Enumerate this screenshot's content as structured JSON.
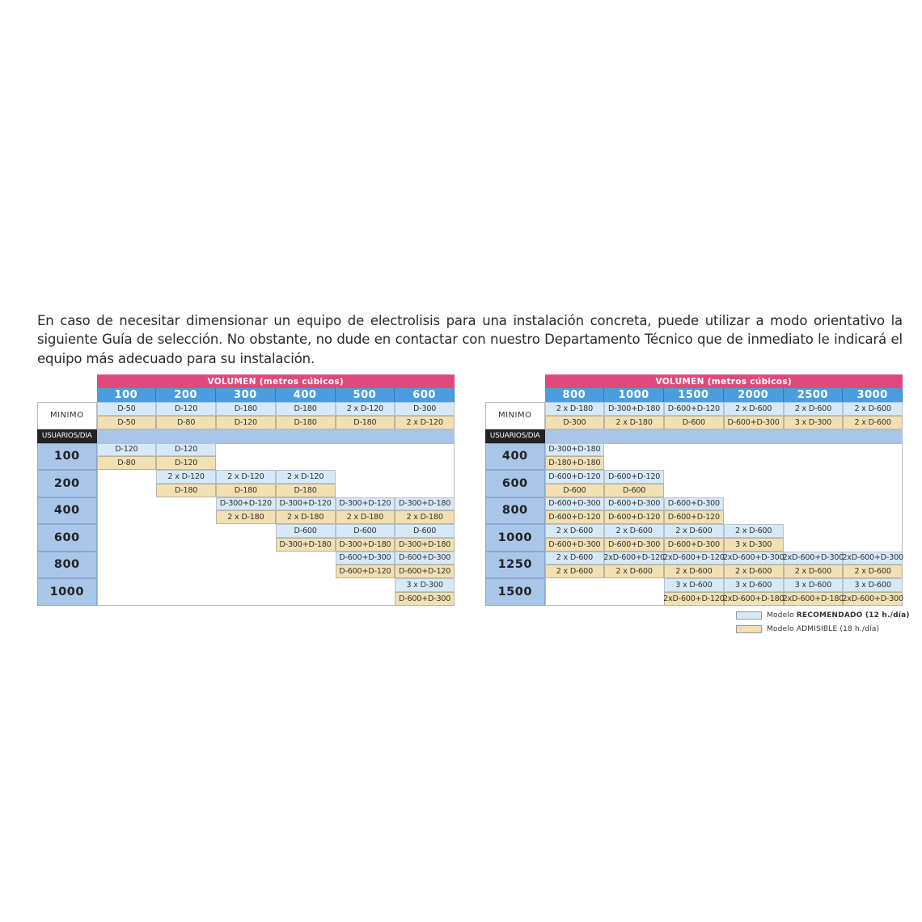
{
  "intro_text": "En caso de necesitar dimensionar un equipo de electrolisis para una instalación concreta, puede utilizar a modo orientativo la siguiente Guía de selección. No obstante, no dude en contactar con nuestro Departamento Técnico que de inmediato le indicará el equipo más adecuado para su instalación.",
  "colors": {
    "volumen_header": "#e0497e",
    "column_header": "#4b9de0",
    "recomendado": "#d6e9f8",
    "admisible": "#f2e0b3",
    "row_label": "#a9c5e8"
  },
  "tables": [
    {
      "volume_title": "VOLUMEN (metros cúbicos)",
      "minimo_label": "MINIMO",
      "usuarios_label": "USUARIOS/DIA",
      "columns": [
        "100",
        "200",
        "300",
        "400",
        "500",
        "600"
      ],
      "minimo": {
        "recomendado": [
          "D-50",
          "D-120",
          "D-180",
          "D-180",
          "2 x D-120",
          "D-300"
        ],
        "admisible": [
          "D-50",
          "D-80",
          "D-120",
          "D-180",
          "D-180",
          "2 x D-120"
        ]
      },
      "rows": [
        {
          "label": "100",
          "recomendado": [
            "D-120",
            "D-120",
            null,
            null,
            null,
            null
          ],
          "admisible": [
            "D-80",
            "D-120",
            null,
            null,
            null,
            null
          ]
        },
        {
          "label": "200",
          "recomendado": [
            null,
            "2 x D-120",
            "2 x D-120",
            "2 x D-120",
            null,
            null
          ],
          "admisible": [
            null,
            "D-180",
            "D-180",
            "D-180",
            null,
            null
          ]
        },
        {
          "label": "400",
          "recomendado": [
            null,
            null,
            "D-300+D-120",
            "D-300+D-120",
            "D-300+D-120",
            "D-300+D-180"
          ],
          "admisible": [
            null,
            null,
            "2 x D-180",
            "2 x D-180",
            "2 x D-180",
            "2 x D-180"
          ]
        },
        {
          "label": "600",
          "recomendado": [
            null,
            null,
            null,
            "D-600",
            "D-600",
            "D-600"
          ],
          "admisible": [
            null,
            null,
            null,
            "D-300+D-180",
            "D-300+D-180",
            "D-300+D-180"
          ]
        },
        {
          "label": "800",
          "recomendado": [
            null,
            null,
            null,
            null,
            "D-600+D-300",
            "D-600+D-300"
          ],
          "admisible": [
            null,
            null,
            null,
            null,
            "D-600+D-120",
            "D-600+D-120"
          ]
        },
        {
          "label": "1000",
          "recomendado": [
            null,
            null,
            null,
            null,
            null,
            "3 x D-300"
          ],
          "admisible": [
            null,
            null,
            null,
            null,
            null,
            "D-600+D-300"
          ]
        }
      ]
    },
    {
      "volume_title": "VOLUMEN (metros cúbicos)",
      "minimo_label": "MINIMO",
      "usuarios_label": "USUARIOS/DIA",
      "columns": [
        "800",
        "1000",
        "1500",
        "2000",
        "2500",
        "3000"
      ],
      "minimo": {
        "recomendado": [
          "2 x D-180",
          "D-300+D-180",
          "D-600+D-120",
          "2 x D-600",
          "2 x D-600",
          "2 x D-600"
        ],
        "admisible": [
          "D-300",
          "2 x D-180",
          "D-600",
          "D-600+D-300",
          "3 x D-300",
          "2 x D-600"
        ]
      },
      "rows": [
        {
          "label": "400",
          "recomendado": [
            "D-300+D-180",
            null,
            null,
            null,
            null,
            null
          ],
          "admisible": [
            "D-180+D-180",
            null,
            null,
            null,
            null,
            null
          ]
        },
        {
          "label": "600",
          "recomendado": [
            "D-600+D-120",
            "D-600+D-120",
            null,
            null,
            null,
            null
          ],
          "admisible": [
            "D-600",
            "D-600",
            null,
            null,
            null,
            null
          ]
        },
        {
          "label": "800",
          "recomendado": [
            "D-600+D-300",
            "D-600+D-300",
            "D-600+D-300",
            null,
            null,
            null
          ],
          "admisible": [
            "D-600+D-120",
            "D-600+D-120",
            "D-600+D-120",
            null,
            null,
            null
          ]
        },
        {
          "label": "1000",
          "recomendado": [
            "2 x D-600",
            "2 x D-600",
            "2 x D-600",
            "2 x D-600",
            null,
            null
          ],
          "admisible": [
            "D-600+D-300",
            "D-600+D-300",
            "D-600+D-300",
            "3 x D-300",
            null,
            null
          ]
        },
        {
          "label": "1250",
          "recomendado": [
            "2 x D-600",
            "2xD-600+D-120",
            "2xD-600+D-120",
            "2xD-600+D-300",
            "2xD-600+D-300",
            "2xD-600+D-300"
          ],
          "admisible": [
            "2 x D-600",
            "2 x D-600",
            "2 x D-600",
            "2 x D-600",
            "2 x D-600",
            "2 x D-600"
          ]
        },
        {
          "label": "1500",
          "recomendado": [
            null,
            null,
            "3 x D-600",
            "3 x D-600",
            "3 x D-600",
            "3 x D-600"
          ],
          "admisible": [
            null,
            null,
            "2xD-600+D-120",
            "2xD-600+D-180",
            "2xD-600+D-180",
            "2xD-600+D-300"
          ]
        }
      ]
    }
  ],
  "legend": {
    "recomendado_prefix": "Modelo ",
    "recomendado_bold": "RECOMENDADO (12 h./día)",
    "admisible_label": "Modelo ADMISIBLE (18 h./día)"
  }
}
